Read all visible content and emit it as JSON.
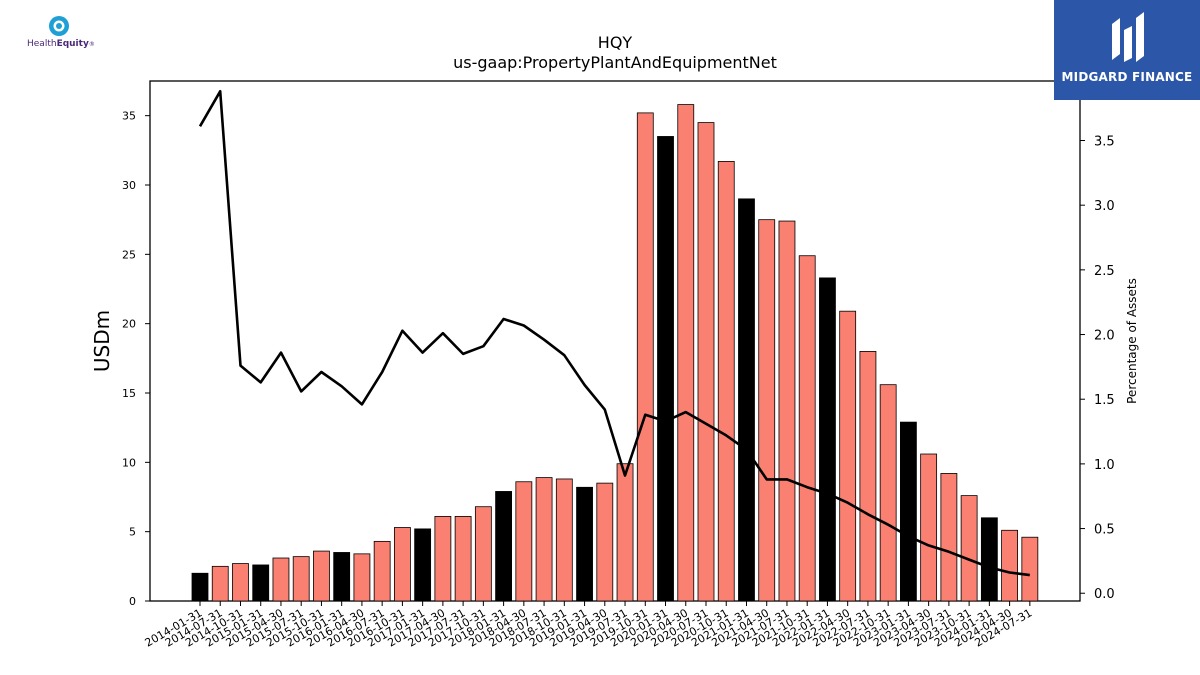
{
  "logos": {
    "left": {
      "word_a": "Health",
      "word_b": "Equity",
      "mark": "®"
    },
    "right": {
      "name": "MIDGARD FINANCE"
    }
  },
  "colors": {
    "bar": "#fa8072",
    "bar_highlight": "#000000",
    "line": "#000000"
  },
  "chart_data": {
    "type": "bar",
    "title": "HQY",
    "subtitle": "us-gaap:PropertyPlantAndEquipmentNet",
    "ylabel": "USDm",
    "y2label": "Percentage of Assets",
    "ylim": [
      0,
      37.5
    ],
    "y2lim": [
      -0.06,
      3.96
    ],
    "yticks": [
      0,
      5,
      10,
      15,
      20,
      25,
      30,
      35
    ],
    "y2ticks": [
      "0.0",
      "0.5",
      "1.0",
      "1.5",
      "2.0",
      "2.5",
      "3.0",
      "3.5"
    ],
    "categories": [
      "2014-01-31",
      "2014-07-31",
      "2014-10-31",
      "2015-01-31",
      "2015-04-30",
      "2015-07-31",
      "2015-10-31",
      "2016-01-31",
      "2016-04-30",
      "2016-07-31",
      "2016-10-31",
      "2017-01-31",
      "2017-04-30",
      "2017-07-31",
      "2017-10-31",
      "2018-01-31",
      "2018-04-30",
      "2018-07-31",
      "2018-10-31",
      "2019-01-31",
      "2019-04-30",
      "2019-07-31",
      "2019-10-31",
      "2020-01-31",
      "2020-04-30",
      "2020-07-31",
      "2020-10-31",
      "2021-01-31",
      "2021-04-30",
      "2021-07-31",
      "2021-10-31",
      "2022-01-31",
      "2022-04-30",
      "2022-07-31",
      "2022-10-31",
      "2023-01-31",
      "2023-04-30",
      "2023-07-31",
      "2023-10-31",
      "2024-01-31",
      "2024-04-30",
      "2024-07-31"
    ],
    "series": [
      {
        "type": "bar",
        "values": [
          2.0,
          2.5,
          2.7,
          2.6,
          3.1,
          3.2,
          3.6,
          3.5,
          3.4,
          4.3,
          5.3,
          5.2,
          6.1,
          6.1,
          6.8,
          7.9,
          8.6,
          8.9,
          8.8,
          8.2,
          8.5,
          9.9,
          35.2,
          33.5,
          35.8,
          34.5,
          31.7,
          29.0,
          27.5,
          27.4,
          24.9,
          23.3,
          20.9,
          18.0,
          15.6,
          12.9,
          10.6,
          9.2,
          7.6,
          6.0,
          5.1,
          4.6
        ],
        "highlight": [
          true,
          false,
          false,
          true,
          false,
          false,
          false,
          true,
          false,
          false,
          false,
          true,
          false,
          false,
          false,
          true,
          false,
          false,
          false,
          true,
          false,
          false,
          false,
          true,
          false,
          false,
          false,
          true,
          false,
          false,
          false,
          true,
          false,
          false,
          false,
          true,
          false,
          false,
          false,
          true,
          false,
          false
        ]
      },
      {
        "type": "line",
        "axis": "right",
        "values": [
          3.61,
          3.88,
          1.76,
          1.63,
          1.86,
          1.56,
          1.71,
          1.6,
          1.46,
          1.71,
          2.03,
          1.86,
          2.01,
          1.85,
          1.91,
          2.12,
          2.07,
          1.96,
          1.84,
          1.61,
          1.42,
          0.91,
          1.38,
          1.33,
          1.4,
          1.31,
          1.22,
          1.11,
          0.88,
          0.88,
          0.82,
          0.77,
          0.7,
          0.61,
          0.53,
          0.44,
          0.37,
          0.32,
          0.26,
          0.2,
          0.16,
          0.14
        ]
      }
    ]
  }
}
